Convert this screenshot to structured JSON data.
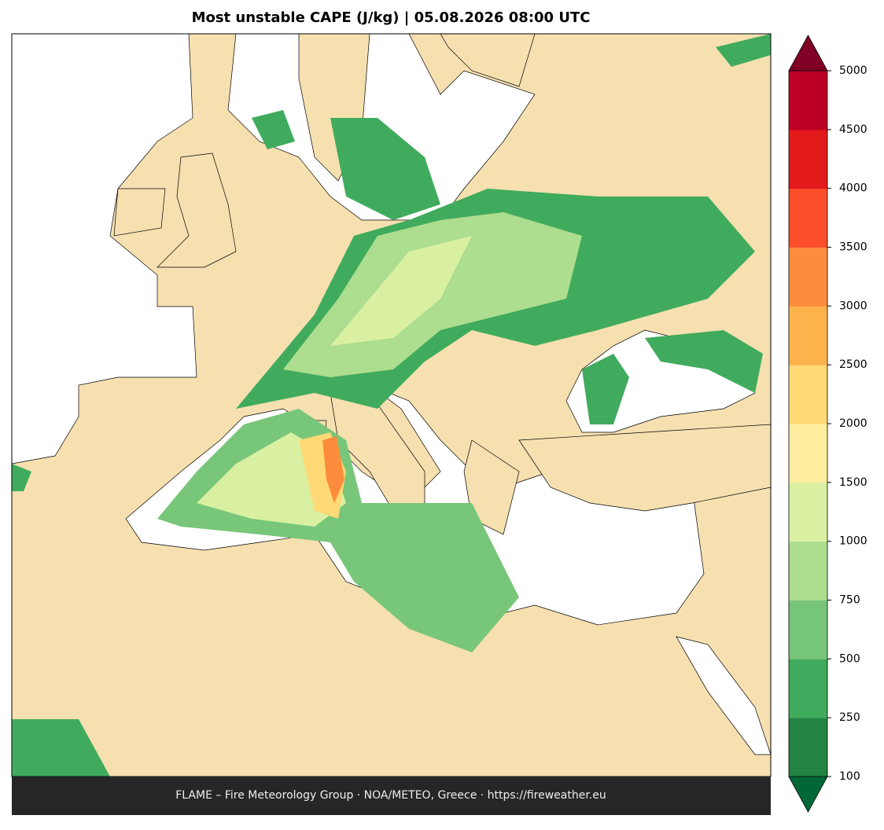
{
  "title": "Most unstable CAPE (J/kg)  |  05.08.2026 08:00 UTC",
  "footer": "FLAME – Fire Meteorology Group · NOA/METEO, Greece · https://fireweather.eu",
  "colorbar": {
    "levels": [
      100,
      250,
      500,
      750,
      1000,
      1500,
      2000,
      2500,
      3000,
      3500,
      4000,
      4500,
      5000
    ],
    "colors": [
      "#238443",
      "#41ab5d",
      "#78c679",
      "#addd8e",
      "#d9f0a3",
      "#ffeda0",
      "#fed976",
      "#feb24c",
      "#fd8d3c",
      "#fc4e2a",
      "#e31a1c",
      "#bd0026"
    ],
    "under_color": "#006837",
    "over_color": "#800026"
  }
}
